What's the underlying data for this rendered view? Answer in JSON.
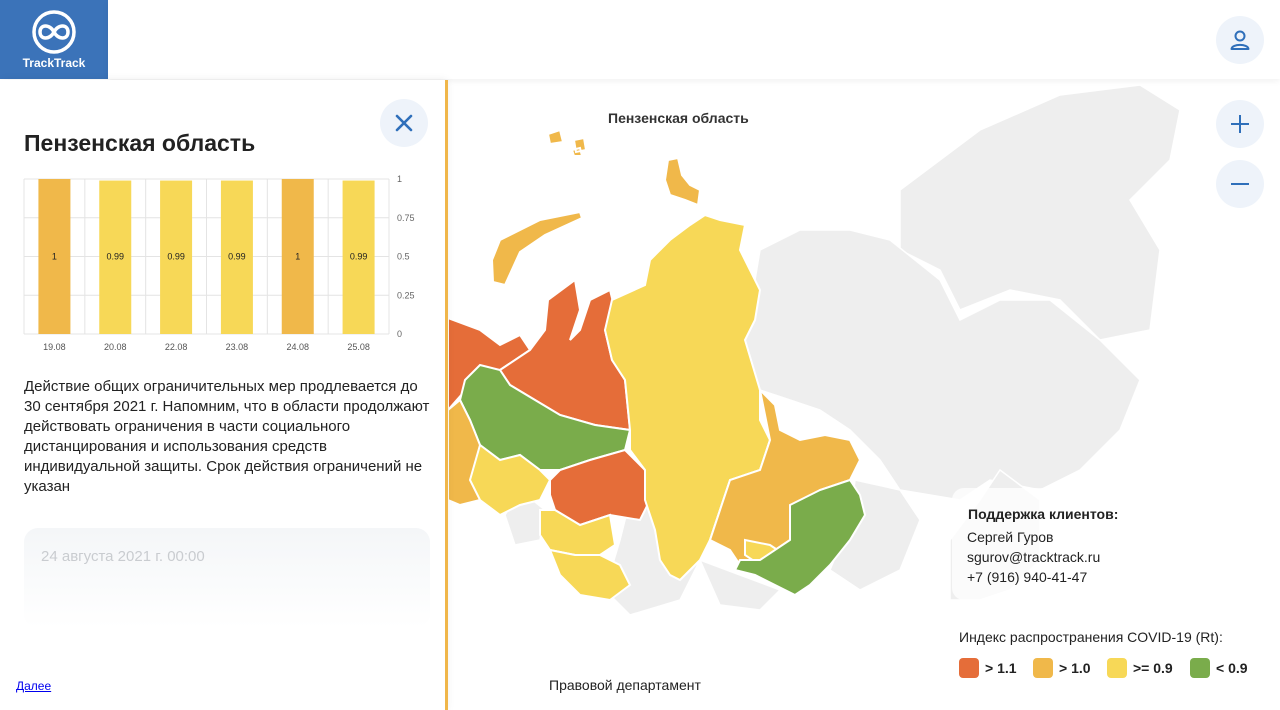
{
  "brand": {
    "name": "TrackTrack",
    "color": "#3b73b9"
  },
  "panel": {
    "title": "Пензенская область",
    "description": "Действие общих ограничительных мер продлевается до 30 сентября 2021 г. Напомним, что в области продолжают действовать ограничения в части социального дистанцирования и использования средств индивидуальной защиты. Срок действия ограничений не указан",
    "date": "24 августа 2021 г. 00:00",
    "more_link": "Далее"
  },
  "chart_data": {
    "type": "bar",
    "categories": [
      "19.08",
      "20.08",
      "22.08",
      "23.08",
      "24.08",
      "25.08"
    ],
    "values": [
      1,
      0.99,
      0.99,
      0.99,
      1,
      0.99
    ],
    "value_labels": [
      "1",
      "0.99",
      "0.99",
      "0.99",
      "1",
      "0.99"
    ],
    "colors": [
      "#f0b84a",
      "#f7d857",
      "#f7d857",
      "#f7d857",
      "#f0b84a",
      "#f7d857"
    ],
    "yticks": [
      "0",
      "0.25",
      "0.5",
      "0.75",
      "1"
    ],
    "ylim": [
      0,
      1
    ],
    "grid": true
  },
  "map": {
    "region_label": "Пензенская область",
    "footer": "Правовой департамент"
  },
  "support": {
    "title": "Поддержка клиентов:",
    "name": "Сергей Гуров",
    "email": "sgurov@tracktrack.ru",
    "phone": "+7 (916) 940-41-47"
  },
  "legend": {
    "title": "Индекс распространения COVID-19 (Rt):",
    "items": [
      {
        "label": "> 1.1",
        "color": "#e56d39"
      },
      {
        "label": "> 1.0",
        "color": "#f0b84a"
      },
      {
        "label": ">= 0.9",
        "color": "#f7d857"
      },
      {
        "label": "< 0.9",
        "color": "#7aac4b"
      }
    ]
  },
  "icons": {
    "user": "user-icon",
    "close": "close-icon",
    "zoom_in": "plus-icon",
    "zoom_out": "minus-icon"
  }
}
